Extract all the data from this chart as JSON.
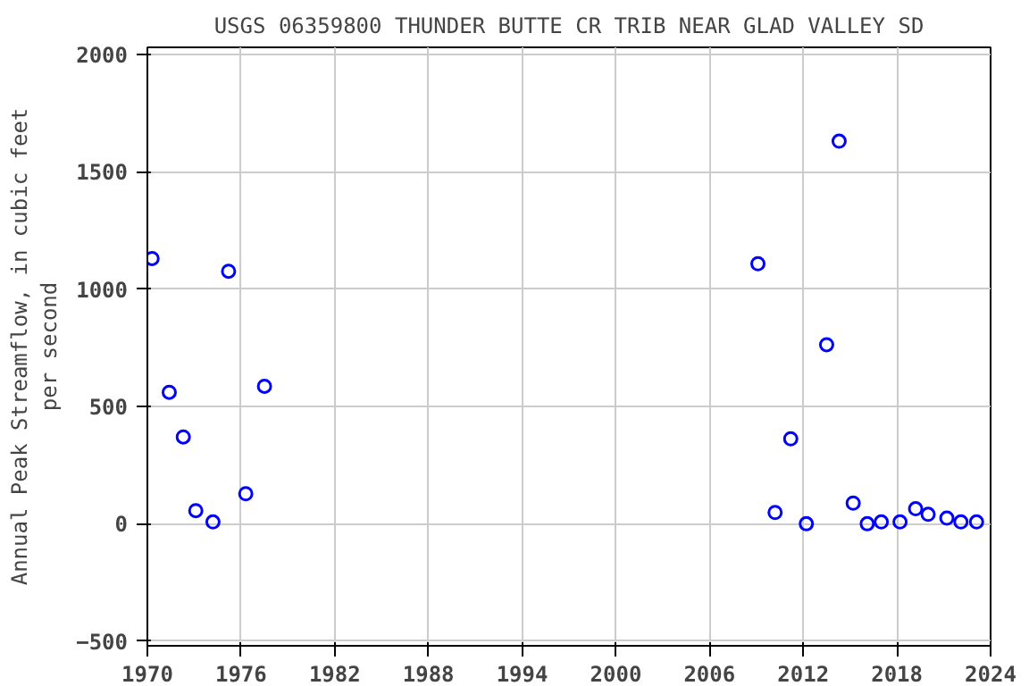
{
  "chart_data": {
    "type": "scatter",
    "title": "USGS 06359800 THUNDER BUTTE CR TRIB NEAR GLAD VALLEY SD",
    "ylabel": "Annual Peak Streamflow, in cubic feet\nper second",
    "x": [
      1970.3,
      1971.4,
      1972.3,
      1973.1,
      1974.2,
      1975.2,
      1976.3,
      1977.5,
      2009.1,
      2010.2,
      2011.2,
      2012.2,
      2013.5,
      2014.3,
      2015.2,
      2016.1,
      2017.0,
      2018.2,
      2019.2,
      2020.0,
      2021.2,
      2022.1,
      2023.1
    ],
    "series": [
      {
        "color": "#0000ff",
        "values": [
          1130,
          560,
          370,
          56,
          8,
          1076,
          128,
          586,
          1108,
          48,
          362,
          0,
          763,
          1630,
          88,
          0,
          8,
          8,
          64,
          40,
          24,
          8,
          8
        ]
      }
    ],
    "marker": "circle",
    "grid": true,
    "xlim": [
      1970,
      2024
    ],
    "xticks": [
      1970,
      1976,
      1982,
      1988,
      1994,
      2000,
      2006,
      2012,
      2018,
      2024
    ],
    "ylim": [
      -520,
      2030
    ],
    "yticks": [
      -500,
      0,
      500,
      1000,
      1500,
      2000
    ]
  }
}
